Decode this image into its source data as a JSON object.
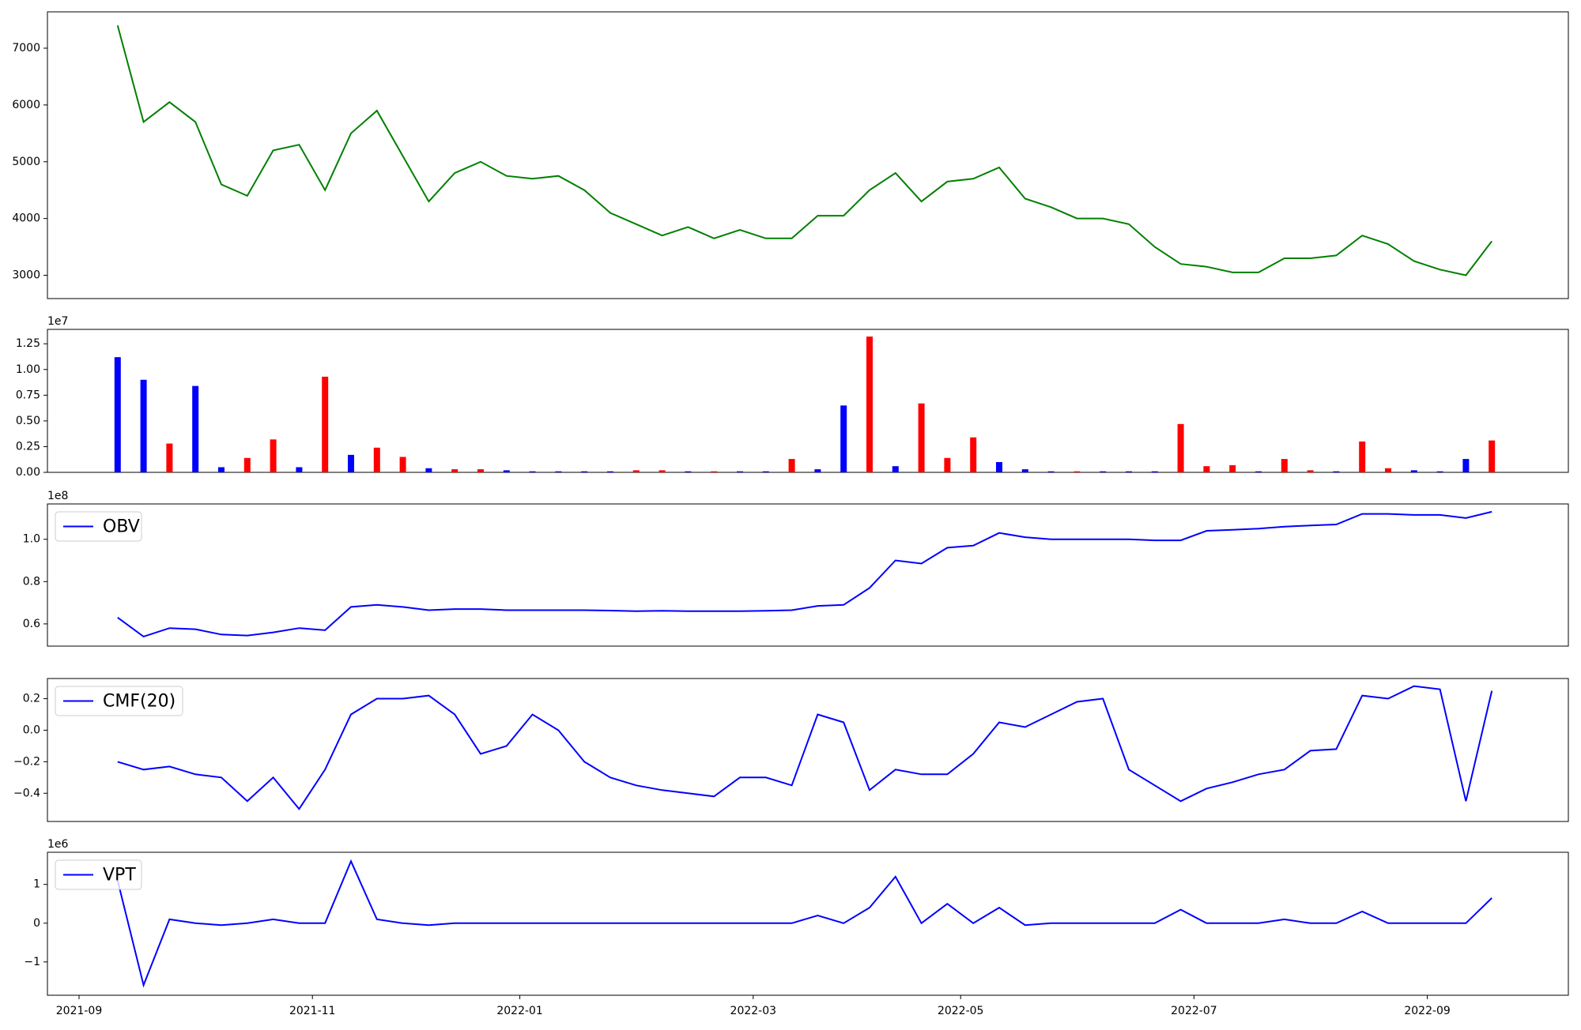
{
  "chart_data": [
    {
      "type": "line",
      "color": "#008000",
      "values": [
        null,
        7400,
        5700,
        6050,
        5700,
        4600,
        4400,
        5200,
        5300,
        4500,
        5500,
        5900,
        5100,
        4300,
        4800,
        5000,
        4750,
        4700,
        4750,
        4500,
        4100,
        3900,
        3700,
        3850,
        3650,
        3800,
        3650,
        3650,
        4050,
        4050,
        4500,
        4800,
        4300,
        4650,
        4700,
        4900,
        4350,
        4200,
        4000,
        4000,
        3900,
        3500,
        3200,
        3150,
        3050,
        3050,
        3300,
        3300,
        3350,
        3700,
        3550,
        3250,
        3100,
        3000,
        3600
      ],
      "ylim": [
        2590,
        7640
      ],
      "yticks": [
        3000,
        4000,
        5000,
        6000,
        7000
      ]
    },
    {
      "type": "bar",
      "offset_label": "1e7",
      "values": [
        null,
        1.12,
        0.9,
        0.28,
        0.84,
        0.05,
        0.14,
        0.32,
        0.05,
        0.93,
        0.17,
        0.24,
        0.15,
        0.04,
        0.03,
        0.03,
        0.02,
        0.01,
        0.01,
        0.01,
        0.01,
        0.02,
        0.02,
        0.01,
        0.01,
        0.01,
        0.01,
        0.13,
        0.03,
        0.65,
        1.32,
        0.06,
        0.67,
        0.14,
        0.34,
        0.1,
        0.03,
        0.01,
        0.01,
        0.01,
        0.01,
        0.01,
        0.47,
        0.06,
        0.07,
        0.01,
        0.13,
        0.02,
        0.01,
        0.3,
        0.04,
        0.02,
        0.01,
        0.13,
        0.31
      ],
      "colors": [
        null,
        "#0000ff",
        "#0000ff",
        "#ff0000",
        "#0000ff",
        "#0000ff",
        "#ff0000",
        "#ff0000",
        "#0000ff",
        "#ff0000",
        "#0000ff",
        "#ff0000",
        "#ff0000",
        "#0000ff",
        "#ff0000",
        "#ff0000",
        "#0000ff",
        "#0000ff",
        "#0000ff",
        "#0000ff",
        "#0000ff",
        "#ff0000",
        "#ff0000",
        "#0000ff",
        "#ff0000",
        "#0000ff",
        "#0000ff",
        "#ff0000",
        "#0000ff",
        "#0000ff",
        "#ff0000",
        "#0000ff",
        "#ff0000",
        "#ff0000",
        "#ff0000",
        "#0000ff",
        "#0000ff",
        "#0000ff",
        "#ff0000",
        "#0000ff",
        "#0000ff",
        "#0000ff",
        "#ff0000",
        "#ff0000",
        "#ff0000",
        "#0000ff",
        "#ff0000",
        "#ff0000",
        "#0000ff",
        "#ff0000",
        "#ff0000",
        "#0000ff",
        "#0000ff",
        "#0000ff",
        "#ff0000"
      ],
      "ylim": [
        0,
        1.39
      ],
      "yticks": [
        {
          "value": 0,
          "label": "0.00"
        },
        0.25,
        {
          "value": 0.5,
          "label": "0.50"
        },
        0.75,
        {
          "value": 1,
          "label": "1.00"
        },
        1.25
      ]
    },
    {
      "type": "line",
      "offset_label": "1e8",
      "legend": "upper left",
      "series": [
        {
          "name": "OBV",
          "color": "#0000ff",
          "values": [
            null,
            0.63,
            0.54,
            0.58,
            0.575,
            0.55,
            0.545,
            0.56,
            0.58,
            0.57,
            0.68,
            0.69,
            0.68,
            0.665,
            0.67,
            0.67,
            0.665,
            0.665,
            0.665,
            0.665,
            0.663,
            0.66,
            0.662,
            0.66,
            0.66,
            0.66,
            0.662,
            0.665,
            0.685,
            0.69,
            0.77,
            0.9,
            0.885,
            0.96,
            0.97,
            1.03,
            1.01,
            1.0,
            1.0,
            1.0,
            1.0,
            0.995,
            0.995,
            1.04,
            1.045,
            1.05,
            1.06,
            1.065,
            1.07,
            1.12,
            1.12,
            1.115,
            1.115,
            1.1,
            1.13
          ]
        }
      ],
      "ylim": [
        0.495,
        1.167
      ],
      "yticks": [
        0.6,
        0.8,
        {
          "value": 1,
          "label": "1.0"
        }
      ]
    },
    {
      "type": "line",
      "legend": "upper left",
      "series": [
        {
          "name": "CMF(20)",
          "color": "#0000ff",
          "values": [
            null,
            -0.2,
            -0.25,
            -0.23,
            -0.28,
            -0.3,
            -0.45,
            -0.3,
            -0.5,
            -0.25,
            0.1,
            0.2,
            0.2,
            0.22,
            0.1,
            -0.15,
            -0.1,
            0.1,
            0.0,
            -0.2,
            -0.3,
            -0.35,
            -0.38,
            -0.4,
            -0.42,
            -0.3,
            -0.3,
            -0.35,
            0.1,
            0.05,
            -0.38,
            -0.25,
            -0.28,
            -0.28,
            -0.15,
            0.05,
            0.02,
            0.1,
            0.18,
            0.2,
            -0.25,
            -0.35,
            -0.45,
            -0.37,
            -0.33,
            -0.28,
            -0.25,
            -0.13,
            -0.12,
            0.22,
            0.2,
            0.28,
            0.26,
            -0.45,
            0.25
          ]
        }
      ],
      "ylim": [
        -0.579,
        0.328
      ],
      "yticks": [
        {
          "value": -0.4,
          "label": "−0.4"
        },
        {
          "value": -0.2,
          "label": "−0.2"
        },
        {
          "value": 0,
          "label": "0.0"
        },
        0.2
      ]
    },
    {
      "type": "line",
      "offset_label": "1e6",
      "legend": "upper left",
      "categories": [
        "2021-09",
        null,
        null,
        null,
        null,
        null,
        null,
        null,
        null,
        "2021-11",
        null,
        null,
        null,
        null,
        null,
        null,
        null,
        "2022-01",
        null,
        null,
        null,
        null,
        null,
        null,
        null,
        null,
        "2022-03",
        null,
        null,
        null,
        null,
        null,
        null,
        null,
        "2022-05",
        null,
        null,
        null,
        null,
        null,
        null,
        null,
        null,
        "2022-07",
        null,
        null,
        null,
        null,
        null,
        null,
        null,
        null,
        "2022-09",
        null,
        null
      ],
      "series": [
        {
          "name": "VPT",
          "color": "#0000ff",
          "values": [
            null,
            1.1,
            -1.6,
            0.1,
            0.0,
            -0.05,
            0.0,
            0.1,
            0.0,
            0.0,
            1.6,
            0.1,
            0.0,
            -0.05,
            0.0,
            0.0,
            0.0,
            0.0,
            0.0,
            0.0,
            0.0,
            0.0,
            0.0,
            0.0,
            0.0,
            0.0,
            0.0,
            0.0,
            0.2,
            0.0,
            0.4,
            1.2,
            0.0,
            0.5,
            0.0,
            0.4,
            -0.05,
            0.0,
            0.0,
            0.0,
            0.0,
            0.0,
            0.35,
            0.0,
            0.0,
            0.0,
            0.1,
            0.0,
            0.0,
            0.3,
            0.0,
            0.0,
            0.0,
            0.0,
            0.65
          ]
        }
      ],
      "ylim": [
        -1.86,
        1.83
      ],
      "yticks": [
        {
          "value": -1,
          "label": "−1"
        },
        0,
        1
      ]
    }
  ]
}
